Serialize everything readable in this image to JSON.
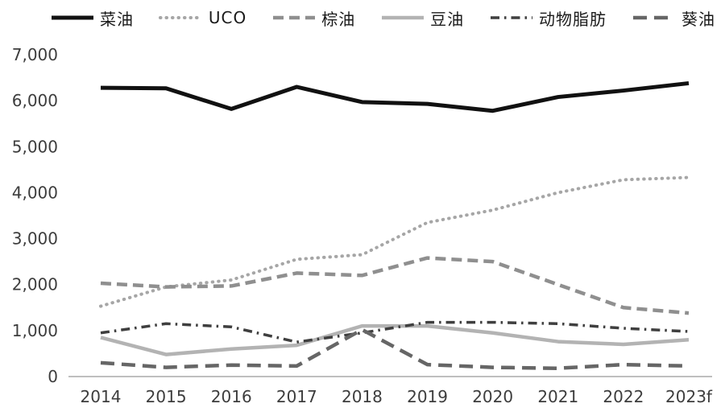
{
  "chart_data": {
    "type": "line",
    "title": "",
    "xlabel": "",
    "ylabel": "",
    "grid": false,
    "legend_position": "top",
    "x": [
      "2014",
      "2015",
      "2016",
      "2017",
      "2018",
      "2019",
      "2020",
      "2021",
      "2022",
      "2023f"
    ],
    "ylim": [
      0,
      7000
    ],
    "yticks": [
      0,
      1000,
      2000,
      3000,
      4000,
      5000,
      6000,
      7000
    ],
    "ytick_labels": [
      "0",
      "1,000",
      "2,000",
      "3,000",
      "4,000",
      "5,000",
      "6,000",
      "7,000"
    ],
    "axis_color": "#bfbfbf",
    "tick_color": "#3d3d3d",
    "series": [
      {
        "key": "rapeseed-oil",
        "name": "菜油",
        "color": "#111111",
        "dash": "solid",
        "width": 5,
        "values": [
          6280,
          6270,
          5820,
          6300,
          5970,
          5930,
          5780,
          6080,
          6220,
          6380
        ]
      },
      {
        "key": "uco",
        "name": "UCO",
        "color": "#a6a6a6",
        "dash": "dotted",
        "width": 4,
        "values": [
          1530,
          1950,
          2100,
          2550,
          2650,
          3350,
          3620,
          4000,
          4280,
          4330
        ]
      },
      {
        "key": "palm-oil",
        "name": "棕油",
        "color": "#8f8f8f",
        "dash": "dashed",
        "width": 4.5,
        "values": [
          2030,
          1950,
          1970,
          2250,
          2200,
          2580,
          2500,
          2000,
          1500,
          1380
        ]
      },
      {
        "key": "soybean-oil",
        "name": "豆油",
        "color": "#b3b3b3",
        "dash": "solid",
        "width": 4.5,
        "values": [
          850,
          480,
          600,
          680,
          1100,
          1100,
          950,
          760,
          700,
          800
        ]
      },
      {
        "key": "animal-fat",
        "name": "动物脂肪",
        "color": "#3f3f3f",
        "dash": "dashdot",
        "width": 3.5,
        "values": [
          950,
          1150,
          1080,
          750,
          950,
          1180,
          1180,
          1150,
          1050,
          980
        ]
      },
      {
        "key": "sunflower-oil",
        "name": "葵油",
        "color": "#666666",
        "dash": "longdash",
        "width": 4.5,
        "values": [
          300,
          200,
          250,
          230,
          1020,
          260,
          200,
          180,
          260,
          230
        ]
      }
    ]
  }
}
